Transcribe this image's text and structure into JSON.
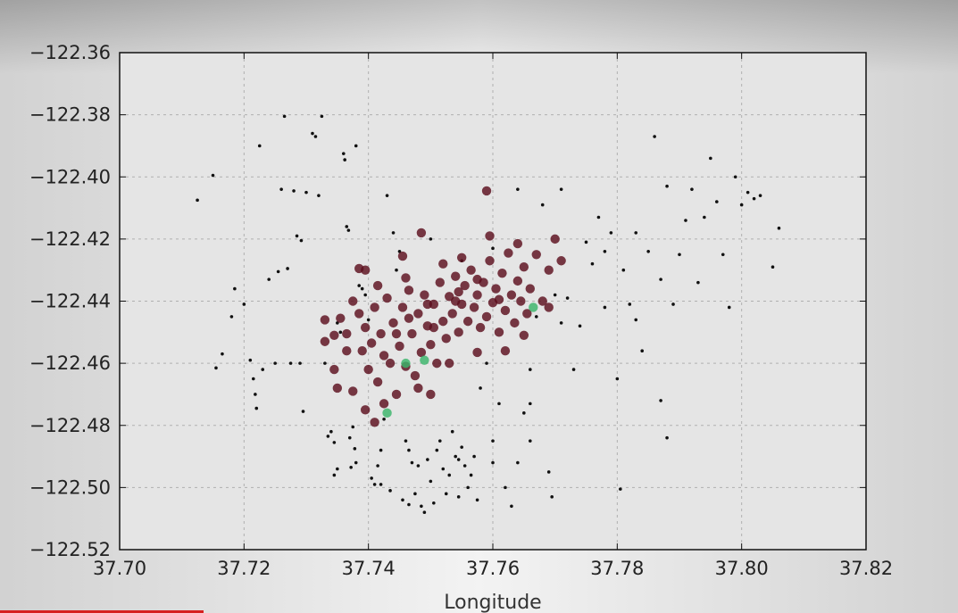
{
  "chart_data": {
    "type": "scatter",
    "title": "",
    "xlabel": "Longitude",
    "ylabel": "",
    "xlim": [
      37.7,
      37.82
    ],
    "ylim": [
      -122.52,
      -122.36
    ],
    "xticks": [
      "37.70",
      "37.72",
      "37.74",
      "37.76",
      "37.78",
      "37.80",
      "37.82"
    ],
    "yticks": [
      "-122.36",
      "-122.38",
      "-122.40",
      "-122.42",
      "-122.44",
      "-122.46",
      "-122.48",
      "-122.50",
      "-122.52"
    ],
    "grid": true,
    "colors": {
      "background": "#e5e5e5",
      "grid": "#b0b0b0",
      "black": "#111111",
      "maroon": "#5c0f1d",
      "green": "#3bb56a"
    },
    "series": [
      {
        "color": "#111111",
        "marker": "small-dot",
        "points": [
          [
            37.7125,
            -122.4075
          ],
          [
            37.715,
            -122.3995
          ],
          [
            37.7155,
            -122.4615
          ],
          [
            37.7165,
            -122.457
          ],
          [
            37.718,
            -122.445
          ],
          [
            37.7185,
            -122.436
          ],
          [
            37.72,
            -122.441
          ],
          [
            37.721,
            -122.459
          ],
          [
            37.7215,
            -122.465
          ],
          [
            37.7218,
            -122.47
          ],
          [
            37.722,
            -122.4745
          ],
          [
            37.7225,
            -122.39
          ],
          [
            37.723,
            -122.462
          ],
          [
            37.724,
            -122.433
          ],
          [
            37.725,
            -122.46
          ],
          [
            37.7255,
            -122.4305
          ],
          [
            37.726,
            -122.404
          ],
          [
            37.7265,
            -122.3805
          ],
          [
            37.727,
            -122.4295
          ],
          [
            37.7275,
            -122.46
          ],
          [
            37.728,
            -122.4045
          ],
          [
            37.7285,
            -122.419
          ],
          [
            37.729,
            -122.46
          ],
          [
            37.7292,
            -122.4205
          ],
          [
            37.7295,
            -122.4755
          ],
          [
            37.73,
            -122.405
          ],
          [
            37.731,
            -122.386
          ],
          [
            37.7315,
            -122.387
          ],
          [
            37.732,
            -122.406
          ],
          [
            37.7325,
            -122.3805
          ],
          [
            37.733,
            -122.46
          ],
          [
            37.7335,
            -122.4835
          ],
          [
            37.734,
            -122.482
          ],
          [
            37.7345,
            -122.4855
          ],
          [
            37.735,
            -122.494
          ],
          [
            37.7355,
            -122.45
          ],
          [
            37.736,
            -122.3925
          ],
          [
            37.7362,
            -122.3945
          ],
          [
            37.7365,
            -122.416
          ],
          [
            37.7368,
            -122.4172
          ],
          [
            37.737,
            -122.484
          ],
          [
            37.7372,
            -122.4935
          ],
          [
            37.7375,
            -122.4805
          ],
          [
            37.7378,
            -122.4875
          ],
          [
            37.738,
            -122.39
          ],
          [
            37.7385,
            -122.435
          ],
          [
            37.739,
            -122.436
          ],
          [
            37.7395,
            -122.438
          ],
          [
            37.74,
            -122.446
          ],
          [
            37.7405,
            -122.497
          ],
          [
            37.741,
            -122.499
          ],
          [
            37.7415,
            -122.493
          ],
          [
            37.742,
            -122.488
          ],
          [
            37.7425,
            -122.478
          ],
          [
            37.743,
            -122.406
          ],
          [
            37.7435,
            -122.501
          ],
          [
            37.744,
            -122.418
          ],
          [
            37.7445,
            -122.43
          ],
          [
            37.745,
            -122.424
          ],
          [
            37.7455,
            -122.504
          ],
          [
            37.746,
            -122.485
          ],
          [
            37.7465,
            -122.488
          ],
          [
            37.747,
            -122.492
          ],
          [
            37.7475,
            -122.502
          ],
          [
            37.748,
            -122.493
          ],
          [
            37.7485,
            -122.506
          ],
          [
            37.749,
            -122.508
          ],
          [
            37.7495,
            -122.491
          ],
          [
            37.75,
            -122.498
          ],
          [
            37.7505,
            -122.505
          ],
          [
            37.751,
            -122.488
          ],
          [
            37.7515,
            -122.485
          ],
          [
            37.752,
            -122.494
          ],
          [
            37.7525,
            -122.502
          ],
          [
            37.753,
            -122.496
          ],
          [
            37.7535,
            -122.482
          ],
          [
            37.754,
            -122.49
          ],
          [
            37.7545,
            -122.503
          ],
          [
            37.755,
            -122.487
          ],
          [
            37.7555,
            -122.493
          ],
          [
            37.756,
            -122.5
          ],
          [
            37.7565,
            -122.496
          ],
          [
            37.757,
            -122.49
          ],
          [
            37.7575,
            -122.504
          ],
          [
            37.758,
            -122.468
          ],
          [
            37.759,
            -122.46
          ],
          [
            37.76,
            -122.492
          ],
          [
            37.761,
            -122.473
          ],
          [
            37.762,
            -122.5
          ],
          [
            37.763,
            -122.506
          ],
          [
            37.764,
            -122.404
          ],
          [
            37.765,
            -122.476
          ],
          [
            37.766,
            -122.462
          ],
          [
            37.767,
            -122.445
          ],
          [
            37.768,
            -122.409
          ],
          [
            37.77,
            -122.438
          ],
          [
            37.771,
            -122.447
          ],
          [
            37.772,
            -122.439
          ],
          [
            37.773,
            -122.462
          ],
          [
            37.774,
            -122.448
          ],
          [
            37.775,
            -122.421
          ],
          [
            37.776,
            -122.428
          ],
          [
            37.777,
            -122.413
          ],
          [
            37.778,
            -122.442
          ],
          [
            37.779,
            -122.418
          ],
          [
            37.78,
            -122.465
          ],
          [
            37.781,
            -122.43
          ],
          [
            37.782,
            -122.441
          ],
          [
            37.783,
            -122.446
          ],
          [
            37.784,
            -122.456
          ],
          [
            37.785,
            -122.424
          ],
          [
            37.786,
            -122.387
          ],
          [
            37.787,
            -122.433
          ],
          [
            37.788,
            -122.403
          ],
          [
            37.789,
            -122.441
          ],
          [
            37.79,
            -122.425
          ],
          [
            37.791,
            -122.414
          ],
          [
            37.792,
            -122.404
          ],
          [
            37.793,
            -122.434
          ],
          [
            37.794,
            -122.413
          ],
          [
            37.795,
            -122.394
          ],
          [
            37.796,
            -122.408
          ],
          [
            37.797,
            -122.425
          ],
          [
            37.798,
            -122.442
          ],
          [
            37.799,
            -122.4
          ],
          [
            37.8,
            -122.409
          ],
          [
            37.801,
            -122.405
          ],
          [
            37.802,
            -122.407
          ],
          [
            37.803,
            -122.406
          ],
          [
            37.805,
            -122.429
          ],
          [
            37.806,
            -122.4165
          ],
          [
            37.7805,
            -122.5005
          ],
          [
            37.7695,
            -122.503
          ],
          [
            37.766,
            -122.473
          ],
          [
            37.7545,
            -122.491
          ],
          [
            37.7465,
            -122.5055
          ],
          [
            37.764,
            -122.492
          ],
          [
            37.742,
            -122.499
          ],
          [
            37.738,
            -122.492
          ],
          [
            37.7345,
            -122.496
          ],
          [
            37.75,
            -122.42
          ],
          [
            37.755,
            -122.427
          ],
          [
            37.76,
            -122.423
          ],
          [
            37.771,
            -122.404
          ],
          [
            37.778,
            -122.424
          ],
          [
            37.783,
            -122.418
          ],
          [
            37.787,
            -122.472
          ],
          [
            37.788,
            -122.484
          ],
          [
            37.766,
            -122.485
          ],
          [
            37.769,
            -122.495
          ],
          [
            37.76,
            -122.485
          ],
          [
            37.735,
            -122.447
          ]
        ]
      },
      {
        "color": "#5c0f1d",
        "marker": "large-dot",
        "points": [
          [
            37.733,
            -122.446
          ],
          [
            37.7345,
            -122.451
          ],
          [
            37.7355,
            -122.4455
          ],
          [
            37.7365,
            -122.4505
          ],
          [
            37.7375,
            -122.44
          ],
          [
            37.7385,
            -122.444
          ],
          [
            37.739,
            -122.456
          ],
          [
            37.7395,
            -122.4485
          ],
          [
            37.74,
            -122.462
          ],
          [
            37.7405,
            -122.4535
          ],
          [
            37.741,
            -122.442
          ],
          [
            37.7415,
            -122.466
          ],
          [
            37.742,
            -122.4505
          ],
          [
            37.7425,
            -122.4575
          ],
          [
            37.743,
            -122.439
          ],
          [
            37.7435,
            -122.46
          ],
          [
            37.744,
            -122.447
          ],
          [
            37.7445,
            -122.47
          ],
          [
            37.745,
            -122.4545
          ],
          [
            37.7455,
            -122.442
          ],
          [
            37.746,
            -122.461
          ],
          [
            37.7465,
            -122.4365
          ],
          [
            37.747,
            -122.4505
          ],
          [
            37.7475,
            -122.464
          ],
          [
            37.748,
            -122.444
          ],
          [
            37.7485,
            -122.4565
          ],
          [
            37.749,
            -122.438
          ],
          [
            37.7495,
            -122.448
          ],
          [
            37.75,
            -122.454
          ],
          [
            37.7505,
            -122.441
          ],
          [
            37.751,
            -122.46
          ],
          [
            37.7515,
            -122.434
          ],
          [
            37.752,
            -122.4465
          ],
          [
            37.7525,
            -122.452
          ],
          [
            37.753,
            -122.4385
          ],
          [
            37.7535,
            -122.444
          ],
          [
            37.754,
            -122.432
          ],
          [
            37.7545,
            -122.45
          ],
          [
            37.755,
            -122.441
          ],
          [
            37.7555,
            -122.435
          ],
          [
            37.756,
            -122.4465
          ],
          [
            37.7565,
            -122.43
          ],
          [
            37.757,
            -122.442
          ],
          [
            37.7575,
            -122.438
          ],
          [
            37.758,
            -122.4485
          ],
          [
            37.7585,
            -122.434
          ],
          [
            37.759,
            -122.445
          ],
          [
            37.7595,
            -122.427
          ],
          [
            37.76,
            -122.4405
          ],
          [
            37.7605,
            -122.436
          ],
          [
            37.761,
            -122.45
          ],
          [
            37.7615,
            -122.431
          ],
          [
            37.762,
            -122.443
          ],
          [
            37.7625,
            -122.4245
          ],
          [
            37.763,
            -122.438
          ],
          [
            37.7635,
            -122.447
          ],
          [
            37.764,
            -122.4335
          ],
          [
            37.7645,
            -122.44
          ],
          [
            37.765,
            -122.429
          ],
          [
            37.7655,
            -122.444
          ],
          [
            37.766,
            -122.436
          ],
          [
            37.767,
            -122.425
          ],
          [
            37.768,
            -122.44
          ],
          [
            37.769,
            -122.43
          ],
          [
            37.77,
            -122.42
          ],
          [
            37.771,
            -122.427
          ],
          [
            37.759,
            -122.4045
          ],
          [
            37.7485,
            -122.418
          ],
          [
            37.7455,
            -122.4255
          ],
          [
            37.7385,
            -122.4295
          ],
          [
            37.7395,
            -122.43
          ],
          [
            37.7375,
            -122.469
          ],
          [
            37.7395,
            -122.475
          ],
          [
            37.741,
            -122.479
          ],
          [
            37.7425,
            -122.473
          ],
          [
            37.748,
            -122.468
          ],
          [
            37.75,
            -122.47
          ],
          [
            37.753,
            -122.46
          ],
          [
            37.7575,
            -122.4565
          ],
          [
            37.762,
            -122.456
          ],
          [
            37.765,
            -122.451
          ],
          [
            37.769,
            -122.442
          ],
          [
            37.764,
            -122.4215
          ],
          [
            37.7595,
            -122.419
          ],
          [
            37.755,
            -122.426
          ],
          [
            37.752,
            -122.428
          ],
          [
            37.746,
            -122.4325
          ],
          [
            37.7415,
            -122.435
          ],
          [
            37.7365,
            -122.456
          ],
          [
            37.7345,
            -122.462
          ],
          [
            37.735,
            -122.468
          ],
          [
            37.733,
            -122.453
          ],
          [
            37.7445,
            -122.4505
          ],
          [
            37.7465,
            -122.4455
          ],
          [
            37.7505,
            -122.4485
          ],
          [
            37.754,
            -122.44
          ],
          [
            37.7575,
            -122.433
          ],
          [
            37.761,
            -122.4395
          ],
          [
            37.7545,
            -122.437
          ],
          [
            37.7495,
            -122.441
          ]
        ]
      },
      {
        "color": "#3bb56a",
        "marker": "large-dot",
        "points": [
          [
            37.743,
            -122.476
          ],
          [
            37.746,
            -122.46
          ],
          [
            37.749,
            -122.459
          ],
          [
            37.7665,
            -122.442
          ]
        ]
      }
    ]
  }
}
